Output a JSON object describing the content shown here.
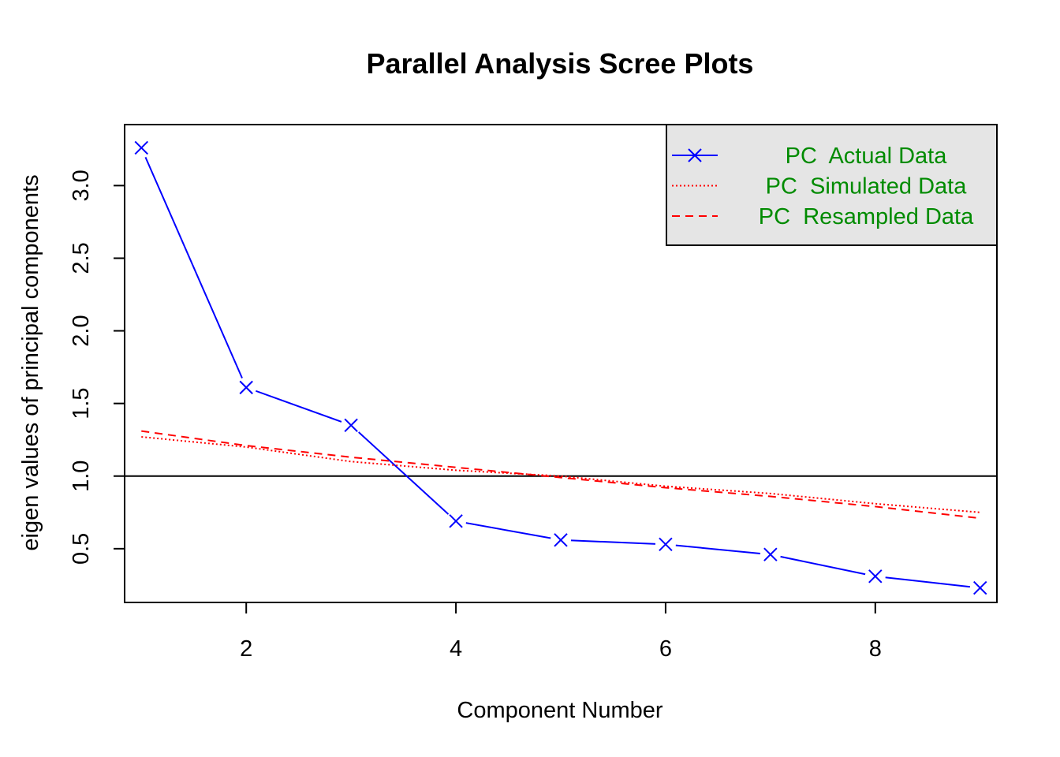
{
  "chart_data": {
    "type": "line",
    "title": "Parallel Analysis Scree Plots",
    "xlabel": "Component Number",
    "ylabel": "eigen values of principal components",
    "xlim": [
      0.84,
      9.16
    ],
    "ylim": [
      0.13,
      3.42
    ],
    "x_ticks": [
      2,
      4,
      6,
      8
    ],
    "x_tick_labels": [
      "2",
      "4",
      "6",
      "8"
    ],
    "y_ticks": [
      0.5,
      1.0,
      1.5,
      2.0,
      2.5,
      3.0
    ],
    "y_tick_labels": [
      "0.5",
      "1.0",
      "1.5",
      "2.0",
      "2.5",
      "3.0"
    ],
    "reference_line": {
      "y": 1.0,
      "color": "#000000"
    },
    "legend_position": "top-right",
    "legend_background": "#e5e5e5",
    "legend_text_color": "#008b00",
    "x": [
      1,
      2,
      3,
      4,
      5,
      6,
      7,
      8,
      9
    ],
    "series": [
      {
        "name": "PC  Actual Data",
        "color": "#0000ff",
        "line_style": "solid",
        "marker": "x",
        "values": [
          3.26,
          1.61,
          1.35,
          0.69,
          0.56,
          0.53,
          0.46,
          0.31,
          0.23
        ]
      },
      {
        "name": "PC  Simulated Data",
        "color": "#ff0000",
        "line_style": "dotted",
        "marker": "none",
        "values": [
          1.27,
          1.2,
          1.1,
          1.04,
          1.0,
          0.93,
          0.88,
          0.81,
          0.75
        ]
      },
      {
        "name": "PC  Resampled Data",
        "color": "#ff0000",
        "line_style": "dashed",
        "marker": "none",
        "values": [
          1.31,
          1.21,
          1.13,
          1.06,
          0.99,
          0.92,
          0.86,
          0.79,
          0.71
        ]
      }
    ]
  }
}
